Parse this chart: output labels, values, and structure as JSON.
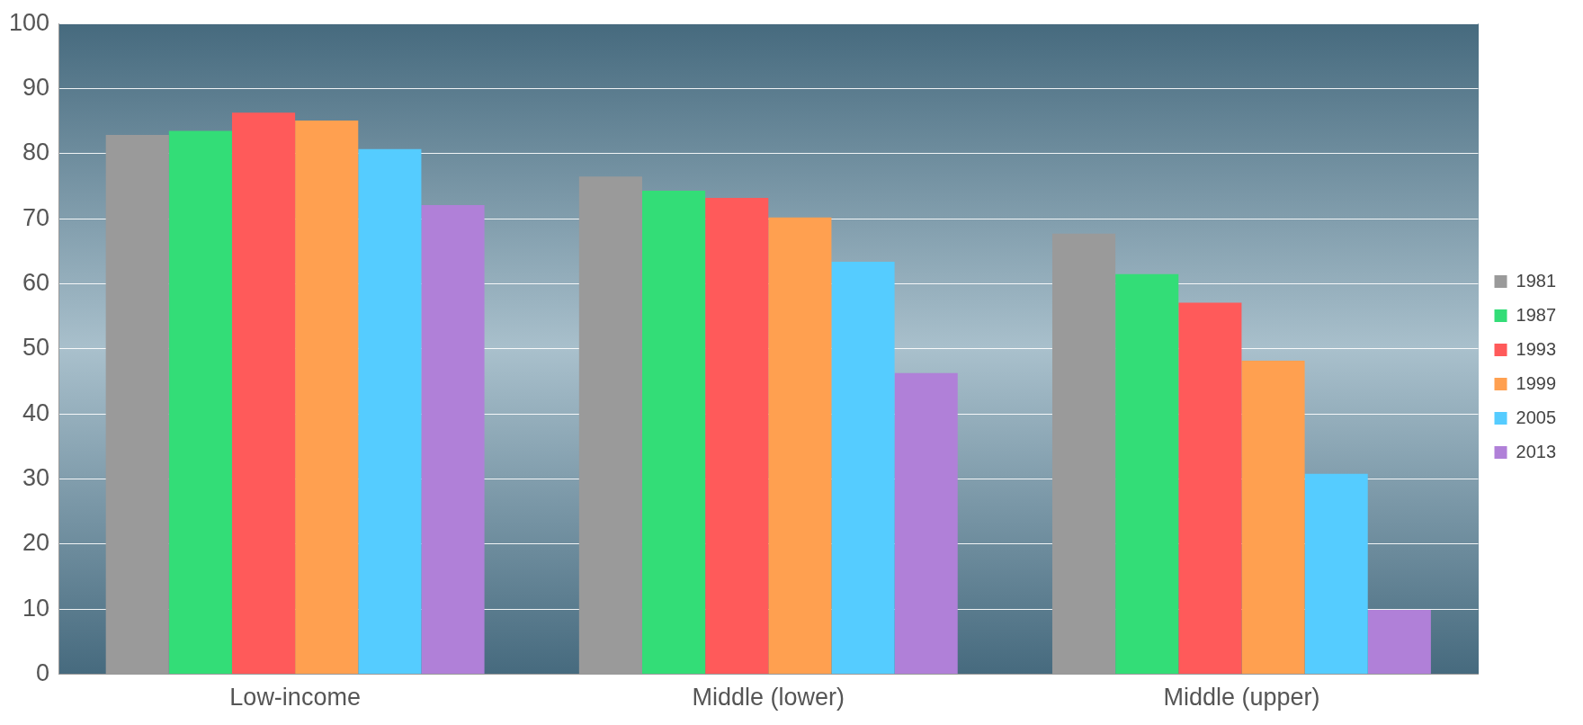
{
  "chart_data": {
    "type": "bar",
    "categories": [
      "Low-income",
      "Middle (lower)",
      "Middle (upper)"
    ],
    "series": [
      {
        "name": "1981",
        "color": "#9a9a9a",
        "values": [
          82.9,
          76.5,
          67.7
        ]
      },
      {
        "name": "1987",
        "color": "#33dd77",
        "values": [
          83.5,
          74.3,
          61.5
        ]
      },
      {
        "name": "1993",
        "color": "#ff5a5a",
        "values": [
          86.3,
          73.2,
          57.1
        ]
      },
      {
        "name": "1999",
        "color": "#ffa050",
        "values": [
          85.1,
          70.2,
          48.2
        ]
      },
      {
        "name": "2005",
        "color": "#55ccff",
        "values": [
          80.7,
          63.4,
          30.8
        ]
      },
      {
        "name": "2013",
        "color": "#b080d8",
        "values": [
          72.1,
          46.3,
          9.9
        ]
      }
    ],
    "ylim": [
      0,
      100
    ],
    "yticks": [
      0,
      10,
      20,
      30,
      40,
      50,
      60,
      70,
      80,
      90,
      100
    ],
    "grid": "y",
    "legend": "right"
  }
}
